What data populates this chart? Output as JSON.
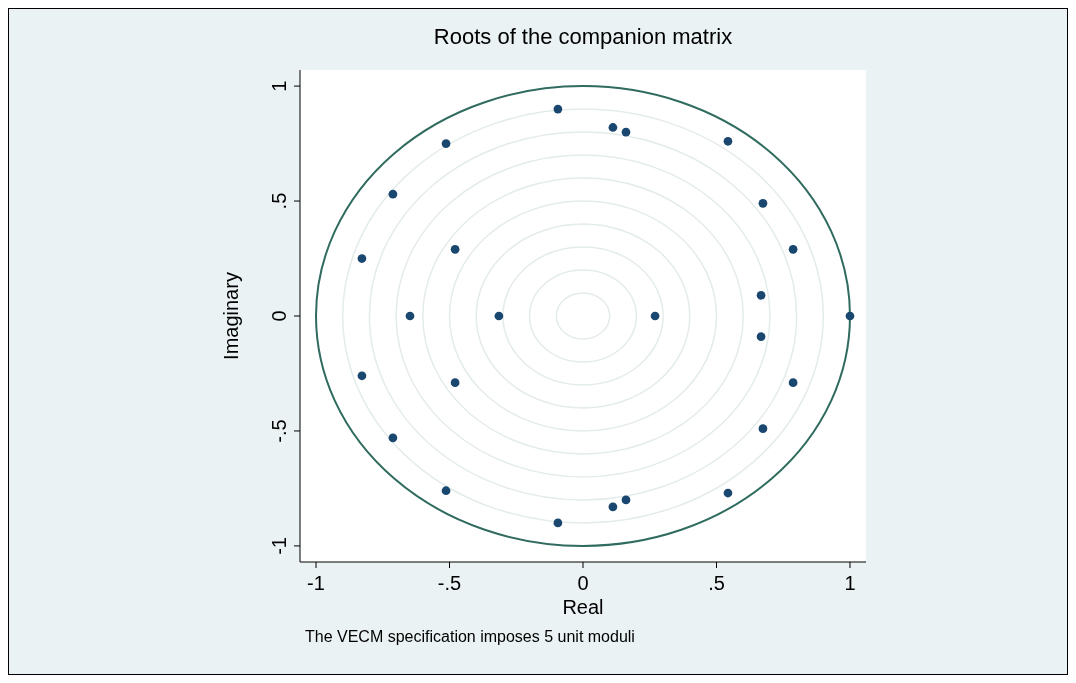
{
  "chart_data": {
    "type": "scatter",
    "title": "Roots of the companion matrix",
    "xlabel": "Real",
    "ylabel": "Imaginary",
    "annotations": [
      "The VECM specification imposes 5 unit moduli"
    ],
    "series": [
      {
        "color": "#1a476f",
        "x": [
          -0.094,
          0.112,
          0.161,
          0.543,
          -0.513,
          -0.712,
          0.674,
          -0.479,
          0.787,
          -0.828,
          0.667,
          -0.648,
          -0.315,
          0.27,
          1,
          0.667,
          -0.828,
          -0.479,
          0.787,
          0.674,
          -0.712,
          -0.513,
          0.543,
          0.161,
          0.112,
          -0.094
        ],
        "values": [
          0.9,
          0.82,
          0.8,
          0.76,
          0.75,
          0.53,
          0.49,
          0.29,
          0.29,
          0.25,
          0.09,
          0,
          0,
          0,
          0,
          -0.09,
          -0.26,
          -0.29,
          -0.29,
          -0.49,
          -0.53,
          -0.76,
          -0.77,
          -0.8,
          -0.83,
          -0.9
        ]
      }
    ],
    "xlim": [
      -1.06,
      1.06
    ],
    "ylim": [
      -1.07,
      1.07
    ],
    "xticks": [
      -1,
      {
        "value": -0.5,
        "label": "-.5"
      },
      0,
      {
        "value": 0.5,
        "label": ".5"
      },
      1
    ],
    "yticks": [
      -1,
      {
        "value": -0.5,
        "label": "-.5"
      },
      0,
      {
        "value": 0.5,
        "label": ".5"
      },
      1
    ],
    "marker": "circle"
  }
}
